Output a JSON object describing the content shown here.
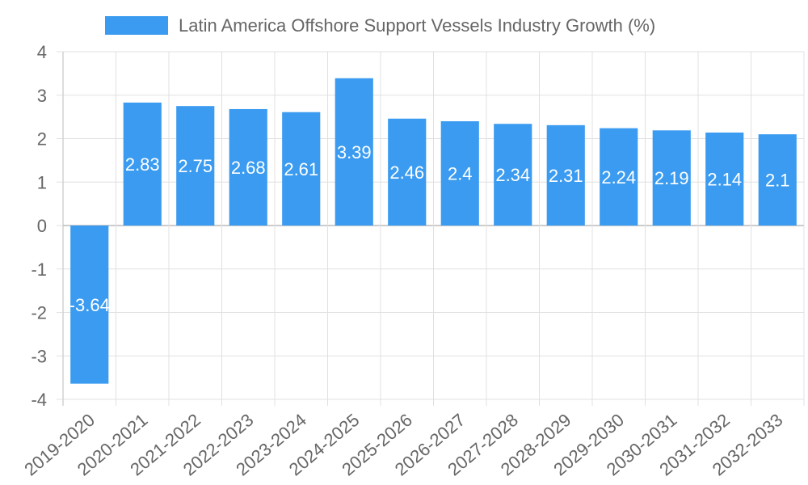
{
  "chart_data": {
    "type": "bar",
    "title": "",
    "xlabel": "",
    "ylabel": "",
    "ylim": [
      -4,
      4
    ],
    "yticks": [
      4,
      3,
      2,
      1,
      0,
      -1,
      -2,
      -3,
      -4
    ],
    "legend_position": "top-center",
    "grid": true,
    "categories": [
      "2019-2020",
      "2020-2021",
      "2021-2022",
      "2022-2023",
      "2023-2024",
      "2024-2025",
      "2025-2026",
      "2026-2027",
      "2027-2028",
      "2028-2029",
      "2029-2030",
      "2030-2031",
      "2031-2032",
      "2032-2033"
    ],
    "series": [
      {
        "name": "Latin America Offshore Support Vessels Industry Growth (%)",
        "color": "#3a9bf0",
        "values": [
          -3.64,
          2.83,
          2.75,
          2.68,
          2.61,
          3.39,
          2.46,
          2.4,
          2.34,
          2.31,
          2.24,
          2.19,
          2.14,
          2.1
        ]
      }
    ]
  }
}
